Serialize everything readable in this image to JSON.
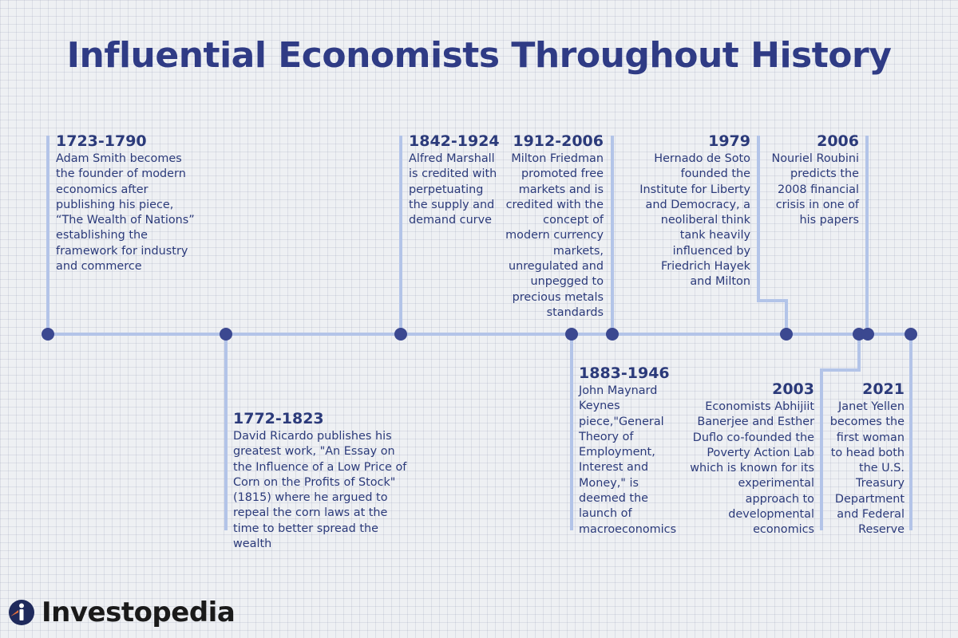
{
  "title": "Influential Economists Throughout History",
  "colors": {
    "title": "#2f3b85",
    "text": "#2b3a7a",
    "line": "#b3c4e8",
    "dot": "#3b4890",
    "background": "#eef0f3"
  },
  "events": [
    {
      "id": "e1",
      "date": "1723-1790",
      "text": "Adam Smith becomes the founder of modern economics after publishing his piece, “The Wealth of Nations” establishing the framework for industry and commerce"
    },
    {
      "id": "e2",
      "date": "1842-1924",
      "text": "Alfred Marshall is credited with perpetuating the supply and demand curve"
    },
    {
      "id": "e3",
      "date": "1912-2006",
      "text": "Milton Friedman promoted free markets and is credited with the concept of modern currency markets, unregulated and unpegged to precious metals standards"
    },
    {
      "id": "e4",
      "date": "1979",
      "text": "Hernado de Soto founded the Institute for Liberty and Democracy, a neoliberal think tank heavily influenced by Friedrich Hayek and Milton"
    },
    {
      "id": "e5",
      "date": "2006",
      "text": "Nouriel Roubini predicts the 2008 financial crisis in one of his papers"
    },
    {
      "id": "e6",
      "date": "1772-1823",
      "text": "David Ricardo publishes his greatest work, \"An Essay on the Influence of a Low Price of Corn on the Profits of Stock\" (1815) where he argued to repeal the corn laws at the time to better spread the wealth"
    },
    {
      "id": "e7",
      "date": "1883-1946",
      "text": "John Maynard Keynes piece,\"General Theory of Employment, Interest and Money,\" is deemed the launch of macroeconomics"
    },
    {
      "id": "e8",
      "date": "2003",
      "text": "Economists Abhijiit Banerjee and Esther Duflo co-founded the Poverty Action Lab which is known for its experimental approach to developmental economics"
    },
    {
      "id": "e9",
      "date": "2021",
      "text": "Janet Yellen becomes the first woman to head both the U.S. Treasury Department and Federal Reserve"
    }
  ],
  "brand": {
    "name": "Investopedia",
    "icon": "investopedia-logo-icon"
  }
}
